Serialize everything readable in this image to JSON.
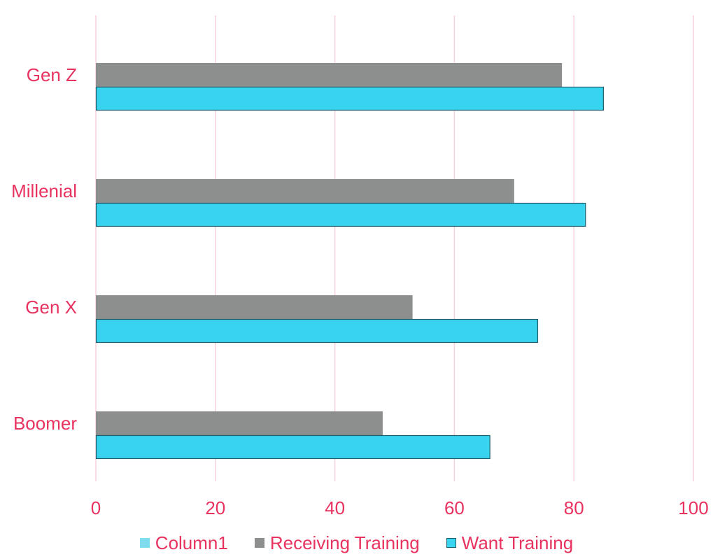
{
  "chart_data": {
    "type": "bar",
    "orientation": "horizontal",
    "categories": [
      "Gen Z",
      "Millenial",
      "Gen X",
      "Boomer"
    ],
    "series": [
      {
        "name": "Column1",
        "values": [
          null,
          null,
          null,
          null
        ],
        "color": "#7fdcee"
      },
      {
        "name": "Receiving Training",
        "values": [
          78,
          70,
          53,
          48
        ],
        "color": "#8c8f8e"
      },
      {
        "name": "Want Training",
        "values": [
          85,
          82,
          74,
          66
        ],
        "color": "#38d3ef",
        "stroke": "#1f5f6c"
      }
    ],
    "xlim": [
      0,
      100
    ],
    "xticks": [
      "0",
      "20",
      "40",
      "60",
      "80",
      "100"
    ],
    "grid": "vertical",
    "gridColor": "#f6d3dc",
    "labelColor": "#e8325f",
    "legend_position": "bottom"
  }
}
